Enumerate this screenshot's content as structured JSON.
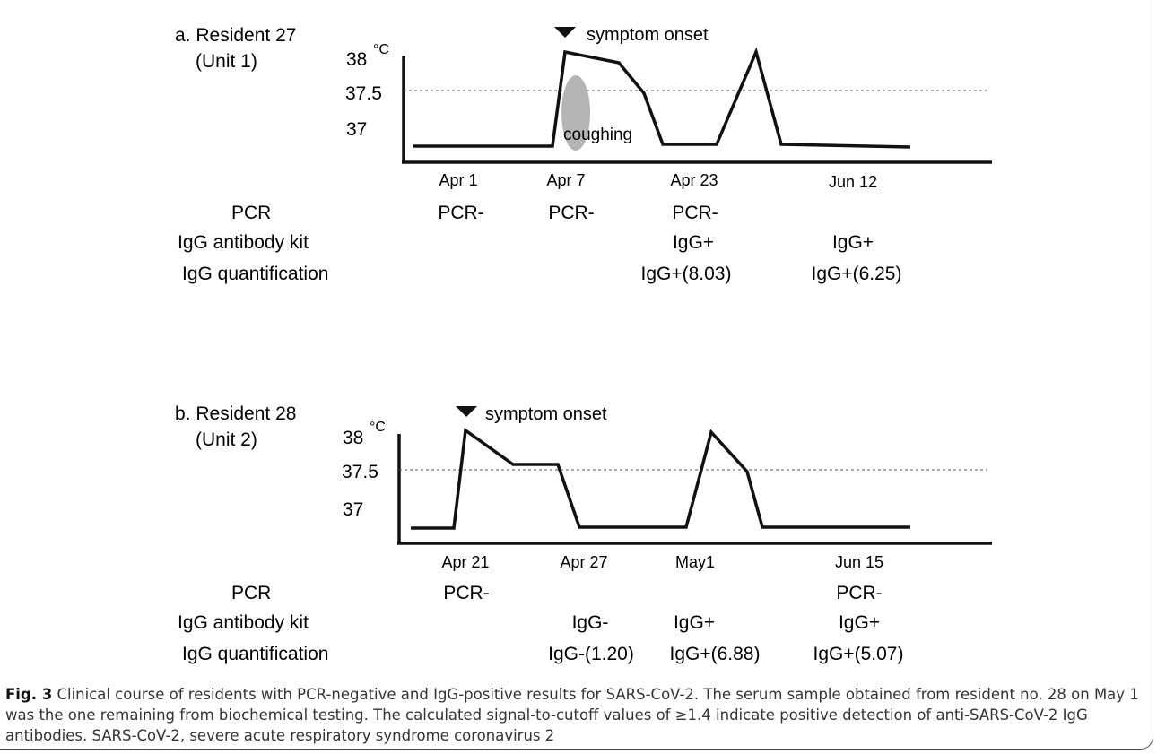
{
  "panel_a": {
    "title": "a. Resident 27",
    "subtitle": "(Unit 1)",
    "unit": "°C",
    "y_ticks": [
      "38",
      "37.5",
      "37"
    ],
    "onset_label": "symptom onset",
    "annotation": "coughing",
    "dates": [
      "Apr 1",
      "Apr 7",
      "Apr 23",
      "Jun 12"
    ],
    "row_labels": [
      "PCR",
      "IgG antibody kit",
      "IgG quantification"
    ],
    "pcr": [
      "PCR-",
      "PCR-",
      "PCR-",
      ""
    ],
    "igg_kit": [
      "",
      "",
      "IgG+",
      "IgG+"
    ],
    "igg_quant": [
      "",
      "",
      "IgG+(8.03)",
      "IgG+(6.25)"
    ]
  },
  "panel_b": {
    "title": "b. Resident 28",
    "subtitle": "(Unit 2)",
    "unit": "°C",
    "y_ticks": [
      "38",
      "37.5",
      "37"
    ],
    "onset_label": "symptom onset",
    "dates": [
      "Apr 21",
      "Apr 27",
      "May1",
      "Jun 15"
    ],
    "row_labels": [
      "PCR",
      "IgG antibody kit",
      "IgG quantification"
    ],
    "pcr": [
      "PCR-",
      "",
      "",
      "PCR-"
    ],
    "igg_kit": [
      "",
      "IgG-",
      "IgG+",
      "IgG+"
    ],
    "igg_quant": [
      "",
      "IgG-(1.20)",
      "IgG+(6.88)",
      "IgG+(5.07)"
    ]
  },
  "caption": {
    "label": "Fig. 3",
    "text": "Clinical course of residents with PCR-negative and IgG-positive results for SARS-CoV-2. The serum sample obtained from resident no. 28 on May 1 was the one remaining from biochemical testing. The calculated signal-to-cutoff values of ≥1.4 indicate positive detection of anti-SARS-CoV-2 IgG antibodies. SARS-CoV-2, severe acute respiratory syndrome coronavirus 2"
  },
  "colors": {
    "line": "#111111",
    "cough_blob": "#b4b4b4",
    "threshold": "#555555"
  }
}
